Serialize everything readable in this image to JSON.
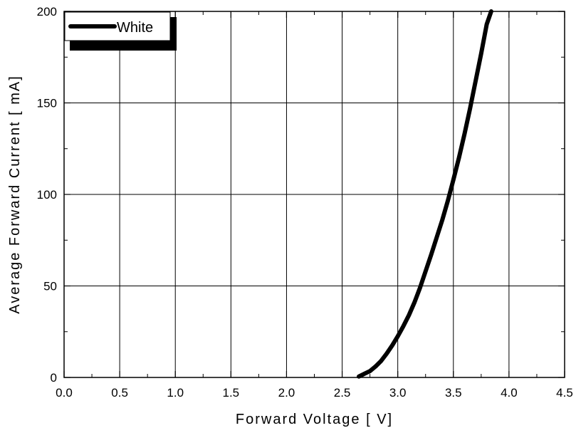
{
  "chart_data": {
    "type": "line",
    "title": "",
    "xlabel": "Forward Voltage [ V]",
    "ylabel": "Average Forward Current [ mA]",
    "xlim": [
      0.0,
      4.5
    ],
    "ylim": [
      0,
      200
    ],
    "xticks": [
      "0.0",
      "0.5",
      "1.0",
      "1.5",
      "2.0",
      "2.5",
      "3.0",
      "3.5",
      "4.0",
      "4.5"
    ],
    "yticks": [
      "0",
      "50",
      "100",
      "150",
      "200"
    ],
    "grid": true,
    "legend_position": "top-left",
    "series": [
      {
        "name": "White",
        "color": "#000000",
        "x": [
          2.65,
          2.7,
          2.75,
          2.8,
          2.85,
          2.9,
          2.95,
          3.0,
          3.05,
          3.1,
          3.15,
          3.2,
          3.25,
          3.3,
          3.35,
          3.4,
          3.45,
          3.5,
          3.55,
          3.6,
          3.65,
          3.7,
          3.75,
          3.8,
          3.84
        ],
        "y": [
          0.5,
          2,
          3.5,
          6,
          9,
          13,
          17.5,
          22.5,
          28,
          34,
          41,
          49,
          58,
          67,
          76.5,
          86,
          96.5,
          108,
          120,
          133,
          147,
          162,
          177,
          193,
          200
        ]
      }
    ]
  }
}
